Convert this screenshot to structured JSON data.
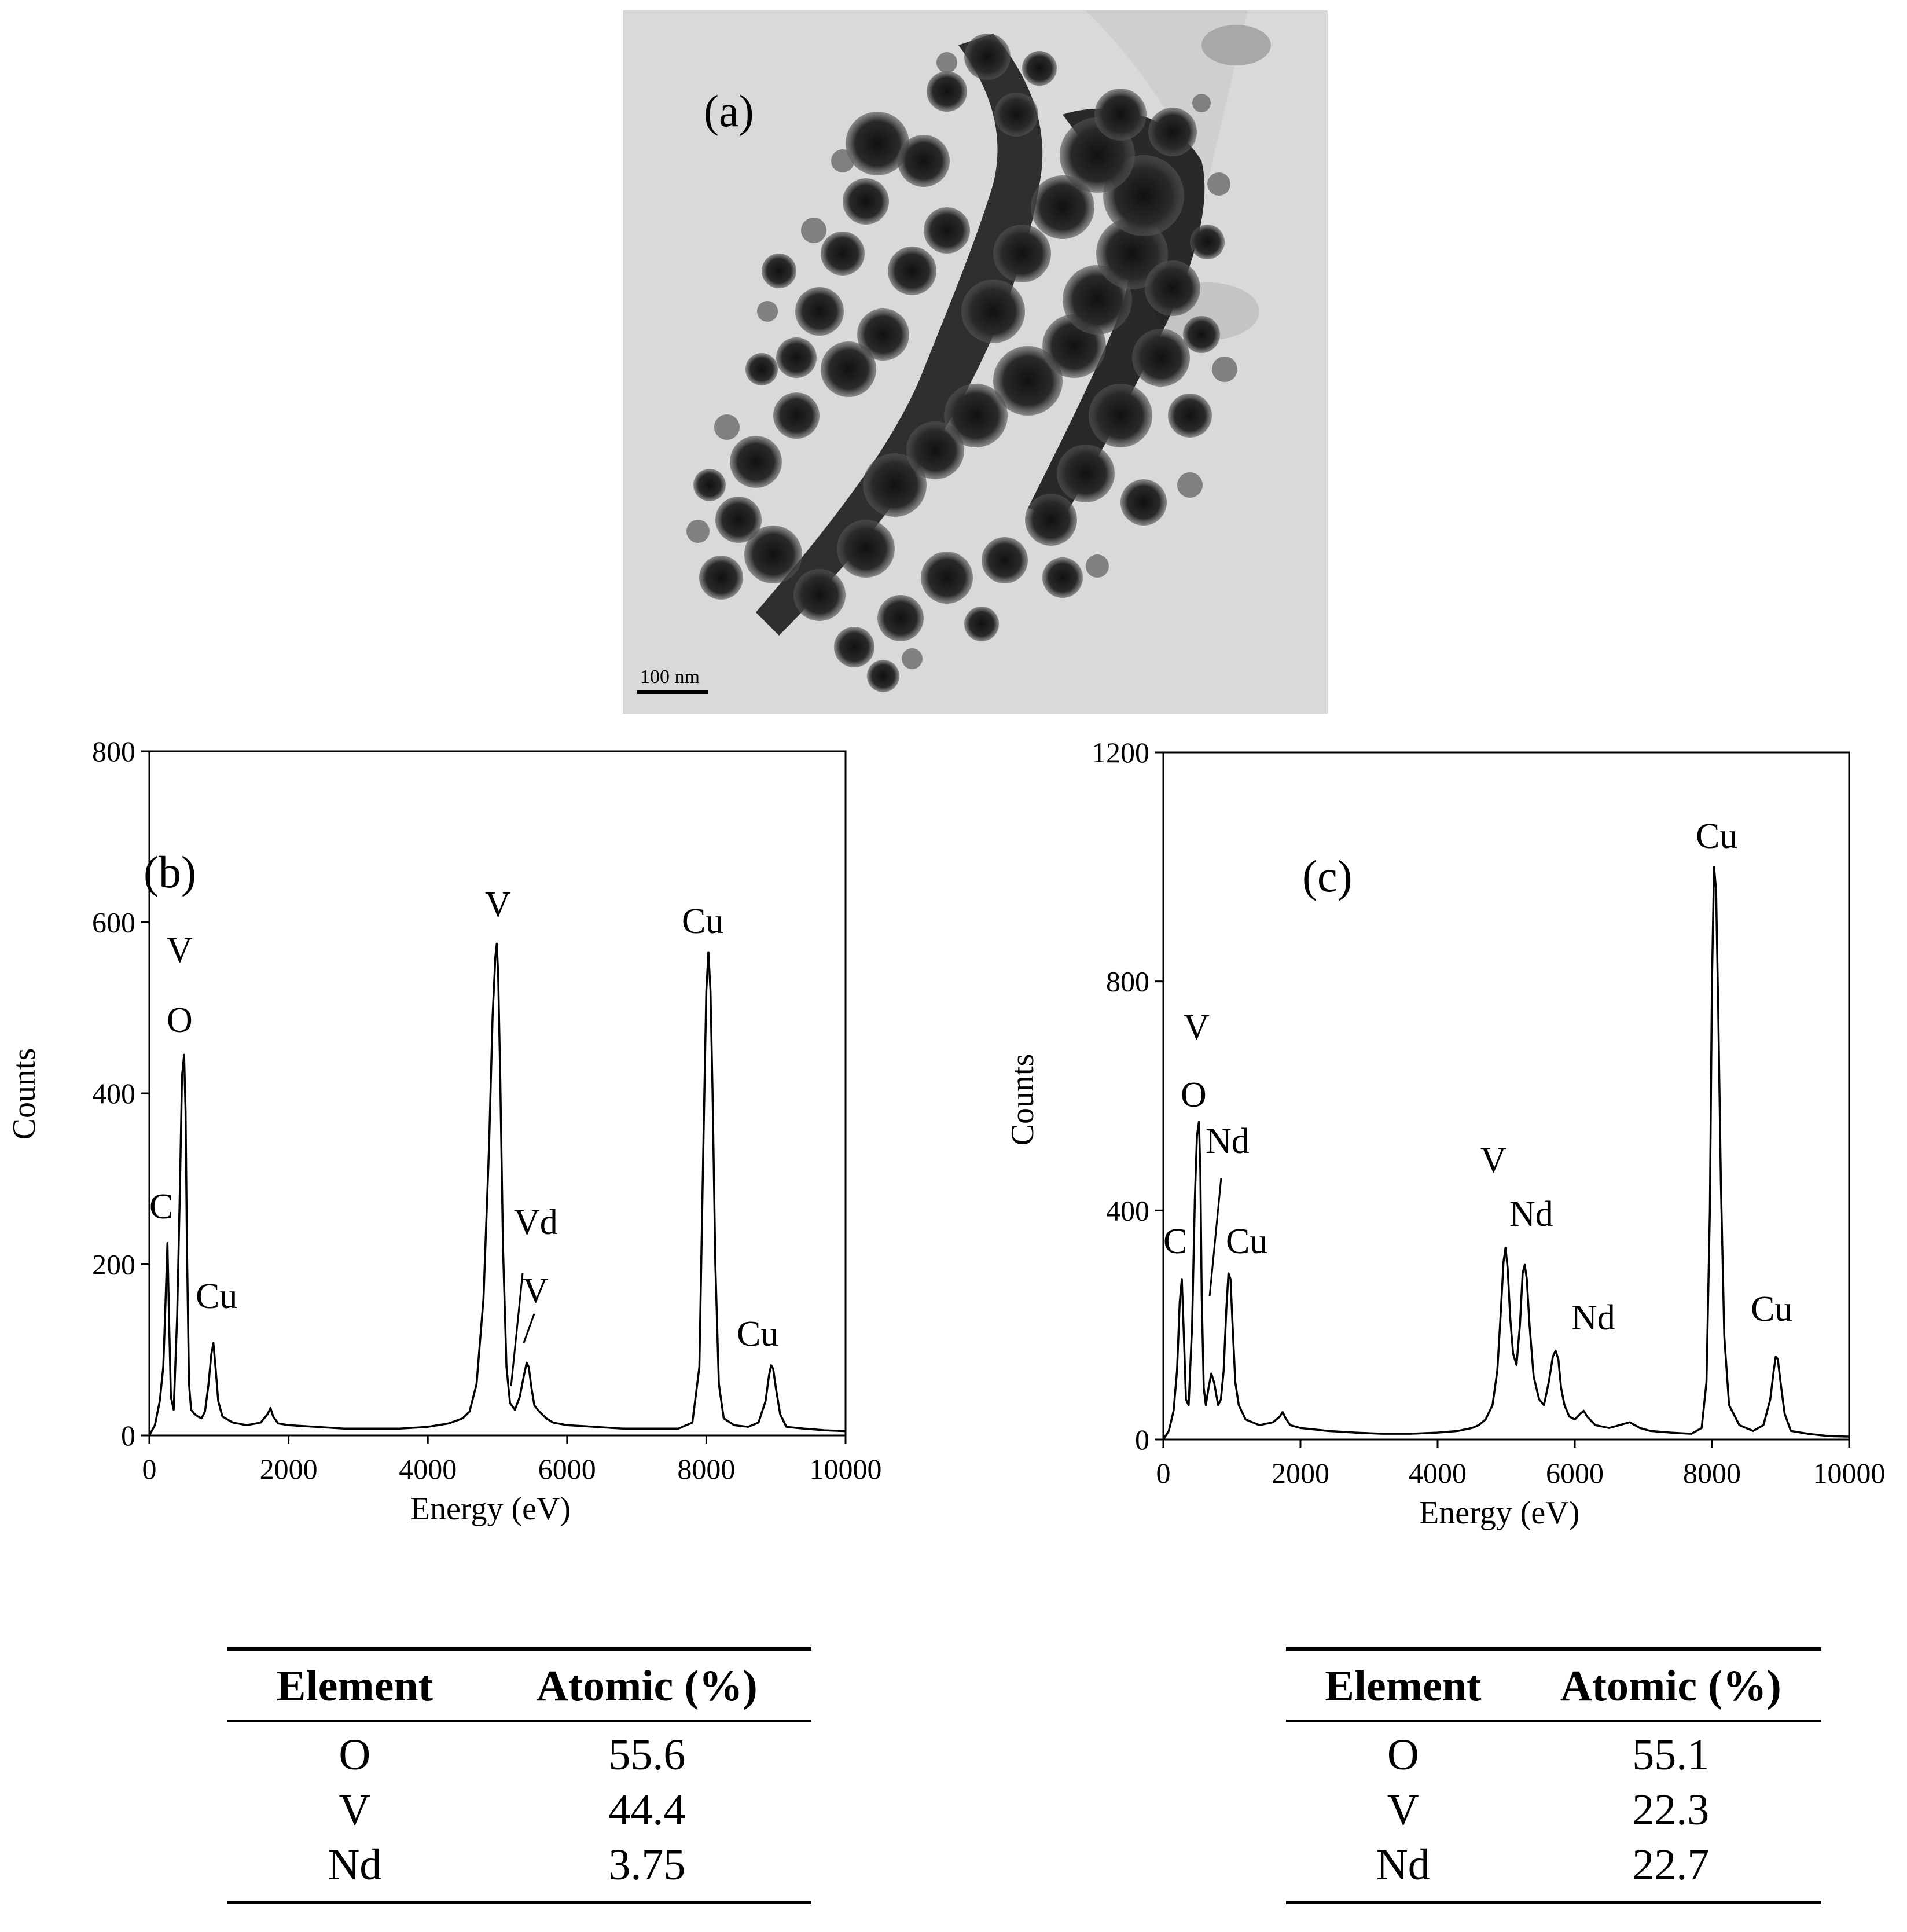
{
  "tem": {
    "panel_label": "(a)",
    "scale_bar": "100 nm"
  },
  "chart_data": [
    {
      "type": "line",
      "panel_label": "(b)",
      "xlabel": "Energy (eV)",
      "ylabel": "Counts",
      "xlim": [
        0,
        10000
      ],
      "ylim": [
        0,
        800
      ],
      "xticks": [
        0,
        2000,
        4000,
        6000,
        8000,
        10000
      ],
      "yticks": [
        0,
        200,
        400,
        600,
        800
      ],
      "grid": false,
      "series": [
        {
          "x": [
            0,
            80,
            150,
            200,
            230,
            260,
            285,
            310,
            350,
            400,
            440,
            470,
            500,
            520,
            540,
            570,
            600,
            650,
            700,
            750,
            800,
            850,
            890,
            920,
            950,
            990,
            1050,
            1200,
            1400,
            1600,
            1700,
            1740,
            1780,
            1850,
            2000,
            2400,
            2800,
            3200,
            3600,
            4000,
            4300,
            4500,
            4600,
            4700,
            4800,
            4880,
            4930,
            4970,
            4990,
            5010,
            5040,
            5080,
            5130,
            5180,
            5250,
            5320,
            5380,
            5420,
            5450,
            5490,
            5530,
            5600,
            5700,
            5800,
            6000,
            6400,
            6800,
            7200,
            7600,
            7800,
            7900,
            7960,
            8000,
            8030,
            8060,
            8090,
            8130,
            8180,
            8250,
            8400,
            8600,
            8750,
            8850,
            8900,
            8930,
            8960,
            9000,
            9060,
            9150,
            9400,
            9700,
            10000
          ],
          "y": [
            0,
            12,
            40,
            80,
            150,
            225,
            130,
            45,
            30,
            140,
            290,
            420,
            445,
            380,
            220,
            60,
            30,
            25,
            22,
            20,
            28,
            60,
            95,
            108,
            80,
            40,
            22,
            15,
            12,
            15,
            25,
            32,
            22,
            14,
            12,
            10,
            8,
            8,
            8,
            10,
            14,
            20,
            28,
            60,
            160,
            340,
            490,
            560,
            575,
            540,
            420,
            220,
            80,
            38,
            30,
            45,
            70,
            85,
            80,
            55,
            35,
            28,
            20,
            15,
            12,
            10,
            8,
            8,
            8,
            15,
            80,
            350,
            520,
            565,
            520,
            400,
            200,
            60,
            20,
            12,
            10,
            15,
            40,
            70,
            82,
            78,
            55,
            25,
            10,
            8,
            6,
            5
          ]
        }
      ],
      "annotations": [
        "C",
        "V",
        "O",
        "Cu",
        "V",
        "Vd",
        "V",
        "Cu",
        "Cu"
      ]
    },
    {
      "type": "line",
      "panel_label": "(c)",
      "xlabel": "Energy (eV)",
      "ylabel": "Counts",
      "xlim": [
        0,
        10000
      ],
      "ylim": [
        0,
        1200
      ],
      "xticks": [
        0,
        2000,
        4000,
        6000,
        8000,
        10000
      ],
      "yticks": [
        0,
        400,
        800,
        1200
      ],
      "grid": false,
      "series": [
        {
          "x": [
            0,
            80,
            150,
            200,
            240,
            270,
            300,
            330,
            370,
            420,
            460,
            490,
            520,
            540,
            560,
            590,
            620,
            660,
            700,
            740,
            770,
            800,
            840,
            880,
            920,
            950,
            980,
            1010,
            1050,
            1100,
            1200,
            1400,
            1600,
            1700,
            1740,
            1780,
            1850,
            2000,
            2400,
            2800,
            3200,
            3600,
            4000,
            4300,
            4500,
            4600,
            4700,
            4800,
            4870,
            4920,
            4960,
            4990,
            5020,
            5060,
            5100,
            5150,
            5200,
            5240,
            5270,
            5300,
            5340,
            5400,
            5480,
            5550,
            5620,
            5680,
            5720,
            5760,
            5800,
            5850,
            5920,
            6000,
            6080,
            6130,
            6180,
            6300,
            6500,
            6650,
            6800,
            6950,
            7100,
            7400,
            7700,
            7850,
            7920,
            7970,
            8000,
            8030,
            8060,
            8090,
            8130,
            8180,
            8250,
            8400,
            8600,
            8750,
            8850,
            8900,
            8930,
            8960,
            9000,
            9060,
            9150,
            9400,
            9700,
            10000
          ],
          "y": [
            0,
            15,
            50,
            120,
            240,
            280,
            180,
            70,
            60,
            200,
            420,
            530,
            555,
            470,
            250,
            90,
            60,
            90,
            115,
            100,
            80,
            60,
            70,
            120,
            230,
            290,
            280,
            200,
            100,
            60,
            35,
            25,
            30,
            40,
            48,
            38,
            25,
            20,
            15,
            12,
            10,
            10,
            12,
            15,
            20,
            25,
            35,
            60,
            120,
            220,
            310,
            335,
            300,
            210,
            150,
            130,
            200,
            290,
            305,
            280,
            200,
            110,
            70,
            60,
            100,
            145,
            155,
            140,
            90,
            60,
            40,
            35,
            45,
            50,
            40,
            25,
            20,
            25,
            30,
            20,
            15,
            12,
            10,
            20,
            100,
            400,
            800,
            1000,
            960,
            760,
            450,
            180,
            60,
            25,
            15,
            25,
            70,
            120,
            145,
            140,
            100,
            45,
            15,
            10,
            6,
            5
          ]
        }
      ],
      "annotations": [
        "C",
        "V",
        "O",
        "Nd",
        "Cu",
        "V",
        "Nd",
        "Nd",
        "Cu",
        "Cu"
      ]
    }
  ],
  "table_b": {
    "headers": [
      "Element",
      "Atomic (%)"
    ],
    "rows": [
      [
        "O",
        "55.6"
      ],
      [
        "V",
        "44.4"
      ],
      [
        "Nd",
        "3.75"
      ]
    ]
  },
  "table_c": {
    "headers": [
      "Element",
      "Atomic (%)"
    ],
    "rows": [
      [
        "O",
        "55.1"
      ],
      [
        "V",
        "22.3"
      ],
      [
        "Nd",
        "22.7"
      ]
    ]
  }
}
